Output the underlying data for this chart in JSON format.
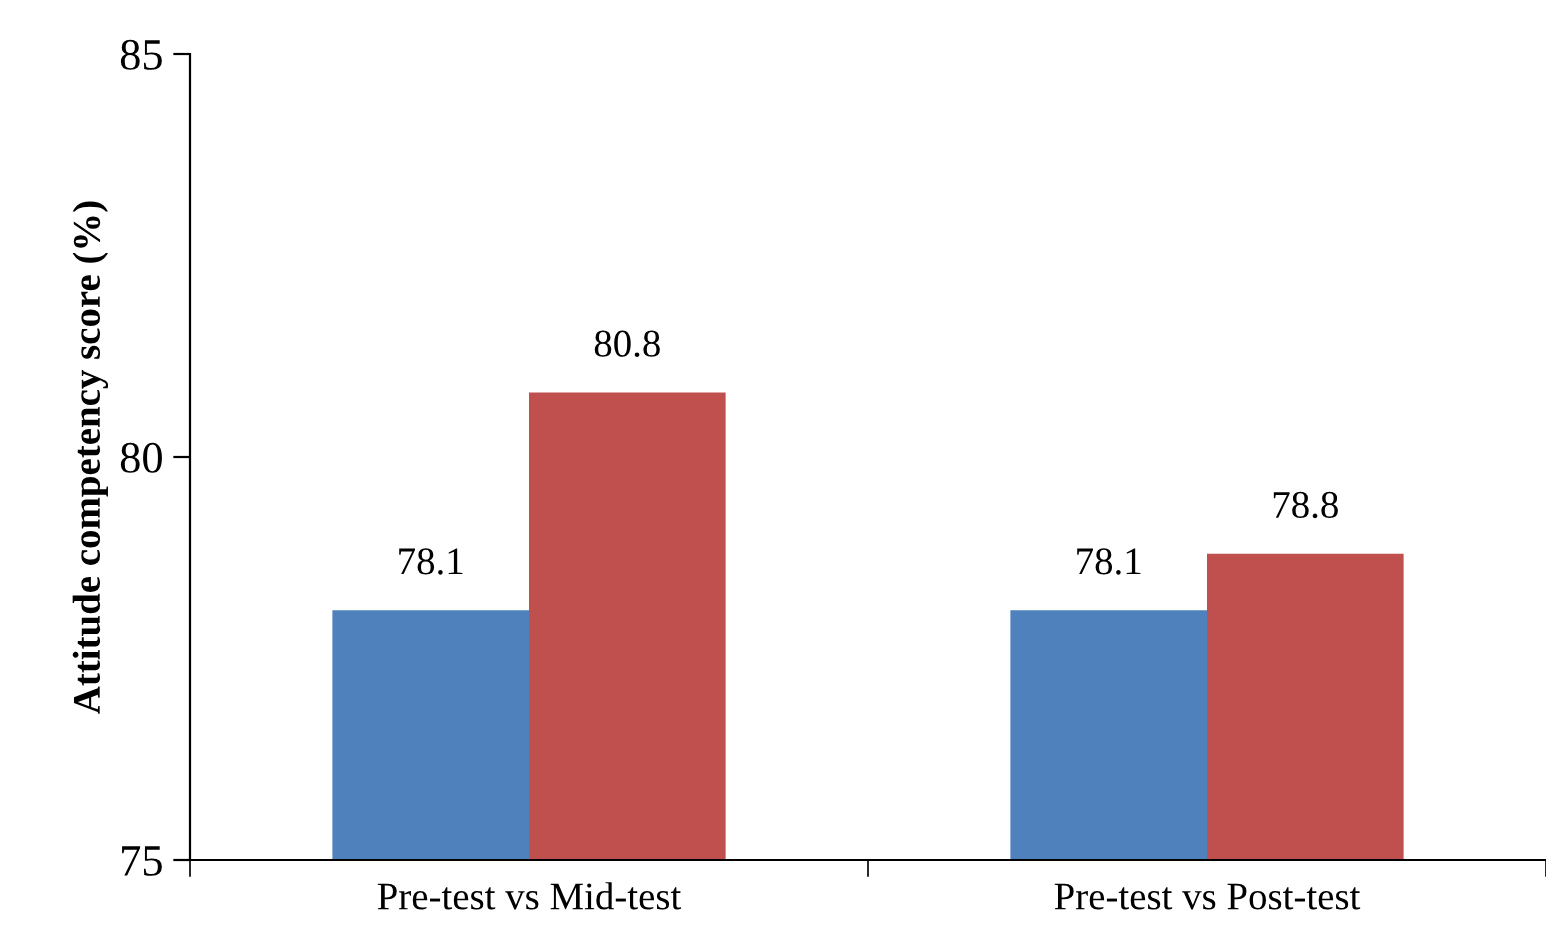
{
  "chart_data": {
    "type": "bar",
    "ylabel": "Attitude competency score (%)",
    "categories": [
      "Pre-test vs Mid-test",
      "Pre-test vs Post-test"
    ],
    "series": [
      {
        "color": "#4f81bd",
        "values": [
          78.1,
          78.1
        ]
      },
      {
        "color": "#c0504d",
        "values": [
          80.8,
          78.8
        ]
      }
    ],
    "ylim": [
      75,
      85
    ],
    "yticks": [
      75,
      80,
      85
    ],
    "data_labels": true
  }
}
